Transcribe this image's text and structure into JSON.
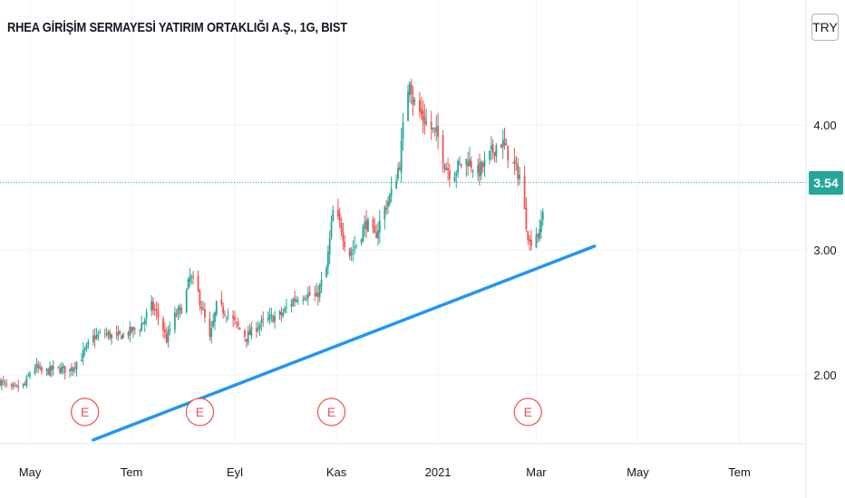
{
  "header": {
    "title": "RHEA GİRİŞİM SERMAYESİ YATIRIM ORTAKLIĞI A.Ş., 1G, BIST",
    "currency_label": "TRY"
  },
  "last_price": {
    "label": "3.54",
    "value": 3.54
  },
  "colors": {
    "up": "#26a69a",
    "down": "#ef5350",
    "trendline": "#2196f3",
    "last_price": "#26a69a",
    "grid": "#f0f3fa",
    "event_marker": "#ef5350"
  },
  "chart_data": {
    "type": "candlestick",
    "title": "RHEA GİRİŞİM SERMAYESİ YATIRIM ORTAKLIĞI A.Ş., 1G, BIST",
    "y_ticks": [
      {
        "value": 2.0,
        "label": "2.00"
      },
      {
        "value": 3.0,
        "label": "3.00"
      },
      {
        "value": 4.0,
        "label": "4.00"
      }
    ],
    "y_range": [
      1.45,
      5.0
    ],
    "x_ticks": [
      {
        "date": "2020-05-01",
        "label": "May"
      },
      {
        "date": "2020-07-01",
        "label": "Tem"
      },
      {
        "date": "2020-09-01",
        "label": "Eyl"
      },
      {
        "date": "2020-11-01",
        "label": "Kas"
      },
      {
        "date": "2021-01-01",
        "label": "2021"
      },
      {
        "date": "2021-03-01",
        "label": "Mar"
      },
      {
        "date": "2021-05-01",
        "label": "May"
      },
      {
        "date": "2021-07-01",
        "label": "Tem"
      }
    ],
    "x_range": [
      "2020-04-13",
      "2021-08-10"
    ],
    "trendline": {
      "start": {
        "date": "2020-06-08",
        "value": 1.48
      },
      "end": {
        "date": "2021-04-05",
        "value": 3.03
      }
    },
    "events": [
      {
        "date": "2020-06-03",
        "label": "E"
      },
      {
        "date": "2020-08-11",
        "label": "E"
      },
      {
        "date": "2020-10-29",
        "label": "E"
      },
      {
        "date": "2021-02-24",
        "label": "E"
      }
    ],
    "close_path": [
      [
        "2020-04-13",
        1.95
      ],
      [
        "2020-04-20",
        1.88
      ],
      [
        "2020-04-28",
        1.92
      ],
      [
        "2020-05-03",
        2.08
      ],
      [
        "2020-05-08",
        2.02
      ],
      [
        "2020-05-18",
        2.05
      ],
      [
        "2020-05-25",
        2.04
      ],
      [
        "2020-06-01",
        2.15
      ],
      [
        "2020-06-08",
        2.3
      ],
      [
        "2020-06-15",
        2.33
      ],
      [
        "2020-06-22",
        2.3
      ],
      [
        "2020-06-29",
        2.34
      ],
      [
        "2020-07-06",
        2.38
      ],
      [
        "2020-07-13",
        2.55
      ],
      [
        "2020-07-18",
        2.45
      ],
      [
        "2020-07-22",
        2.28
      ],
      [
        "2020-07-26",
        2.45
      ],
      [
        "2020-08-01",
        2.55
      ],
      [
        "2020-08-05",
        2.78
      ],
      [
        "2020-08-09",
        2.7
      ],
      [
        "2020-08-13",
        2.5
      ],
      [
        "2020-08-17",
        2.28
      ],
      [
        "2020-08-21",
        2.55
      ],
      [
        "2020-08-27",
        2.5
      ],
      [
        "2020-09-03",
        2.38
      ],
      [
        "2020-09-08",
        2.3
      ],
      [
        "2020-09-15",
        2.4
      ],
      [
        "2020-09-22",
        2.45
      ],
      [
        "2020-09-29",
        2.48
      ],
      [
        "2020-10-06",
        2.6
      ],
      [
        "2020-10-13",
        2.65
      ],
      [
        "2020-10-20",
        2.62
      ],
      [
        "2020-10-26",
        2.85
      ],
      [
        "2020-10-30",
        3.3
      ],
      [
        "2020-11-04",
        3.18
      ],
      [
        "2020-11-08",
        2.95
      ],
      [
        "2020-11-13",
        3.05
      ],
      [
        "2020-11-19",
        3.22
      ],
      [
        "2020-11-24",
        3.1
      ],
      [
        "2020-11-29",
        3.3
      ],
      [
        "2020-12-04",
        3.45
      ],
      [
        "2020-12-09",
        3.7
      ],
      [
        "2020-12-12",
        4.1
      ],
      [
        "2020-12-15",
        4.4
      ],
      [
        "2020-12-17",
        4.2
      ],
      [
        "2020-12-21",
        4.1
      ],
      [
        "2020-12-26",
        4.0
      ],
      [
        "2021-01-01",
        3.9
      ],
      [
        "2021-01-05",
        3.7
      ],
      [
        "2021-01-09",
        3.6
      ],
      [
        "2021-01-14",
        3.68
      ],
      [
        "2021-01-19",
        3.72
      ],
      [
        "2021-01-25",
        3.62
      ],
      [
        "2021-01-30",
        3.7
      ],
      [
        "2021-02-04",
        3.82
      ],
      [
        "2021-02-07",
        3.88
      ],
      [
        "2021-02-11",
        3.8
      ],
      [
        "2021-02-15",
        3.68
      ],
      [
        "2021-02-19",
        3.6
      ],
      [
        "2021-02-22",
        3.3
      ],
      [
        "2021-02-25",
        3.05
      ],
      [
        "2021-02-28",
        3.15
      ],
      [
        "2021-03-03",
        3.12
      ],
      [
        "2021-03-07",
        3.54
      ]
    ]
  }
}
